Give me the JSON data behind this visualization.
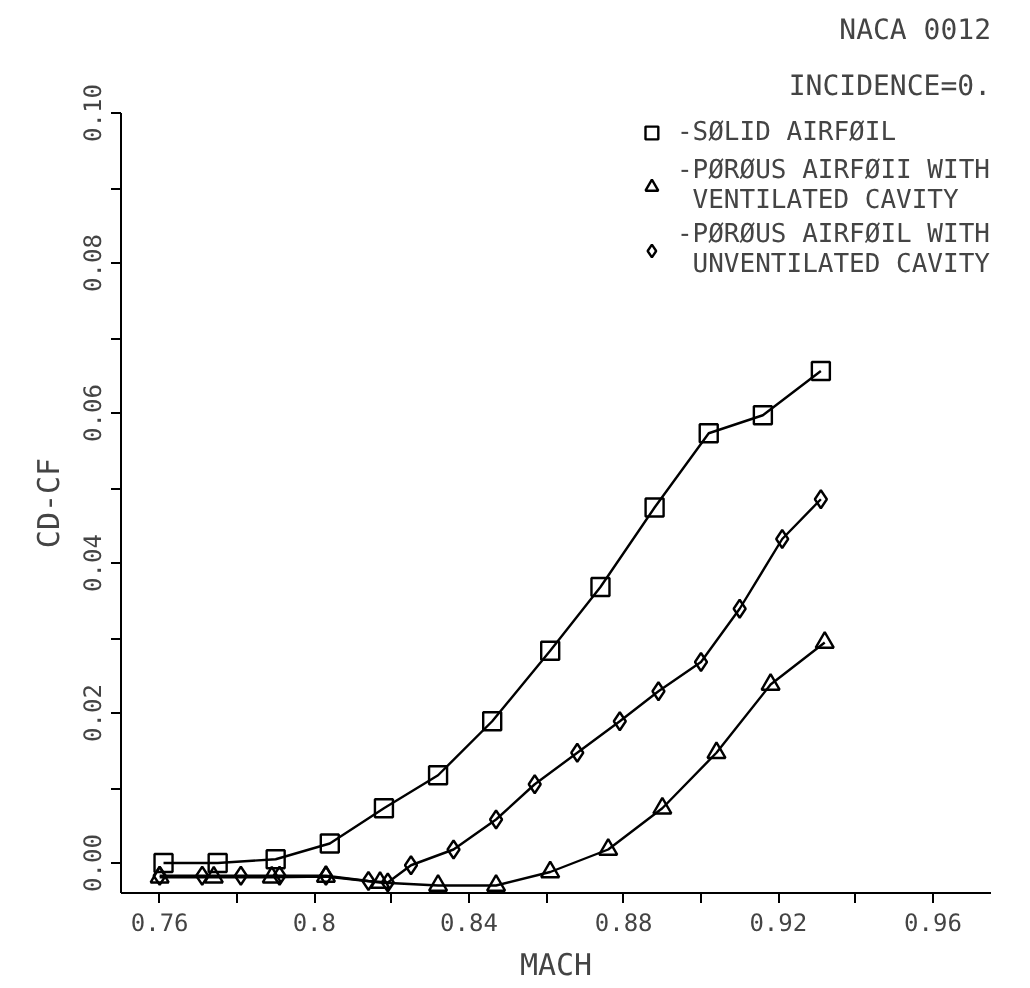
{
  "chart_data": {
    "type": "line",
    "title": "NACA 0012",
    "subtitle": "INCIDENCE=0.",
    "xlabel": "MACH",
    "ylabel": "CD-CF",
    "xlim": [
      0.75,
      0.975
    ],
    "ylim": [
      -0.004,
      0.1
    ],
    "xticks": [
      0.76,
      {
        "value": 0.78,
        "label": null
      },
      0.8,
      {
        "value": 0.82,
        "label": null
      },
      0.84,
      {
        "value": 0.86,
        "label": null
      },
      0.88,
      {
        "value": 0.9,
        "label": null
      },
      0.92,
      {
        "value": 0.94,
        "label": null
      },
      0.96
    ],
    "yticks": [
      {
        "value": 0.0,
        "label": "0.00"
      },
      {
        "value": 0.01,
        "label": null
      },
      0.02,
      {
        "value": 0.03,
        "label": null
      },
      0.04,
      {
        "value": 0.05,
        "label": null
      },
      0.06,
      {
        "value": 0.07,
        "label": null
      },
      {
        "value": 0.08,
        "label": "0.08"
      },
      {
        "value": 0.09,
        "label": null
      },
      {
        "value": 0.1,
        "label": "0.10"
      }
    ],
    "grid": false,
    "legend": "top right",
    "series": [
      {
        "name": "-SØLID AIRFØIL",
        "color": "#000000",
        "marker": "square",
        "x": [
          0.761,
          0.775,
          0.79,
          0.804,
          0.818,
          0.832,
          0.846,
          0.861,
          0.874,
          0.888,
          0.902,
          0.916,
          0.931
        ],
        "values": [
          0.0,
          0.0,
          0.0005,
          0.0026,
          0.0073,
          0.0117,
          0.0189,
          0.0283,
          0.0368,
          0.0474,
          0.0573,
          0.0597,
          0.0656
        ]
      },
      {
        "name": "-PØRØUS AIRFØII WITH\n VENTILATED CAVITY",
        "color": "#000000",
        "marker": "triangle",
        "x": [
          0.76,
          0.774,
          0.789,
          0.803,
          0.817,
          0.832,
          0.847,
          0.861,
          0.876,
          0.89,
          0.904,
          0.918,
          0.932
        ],
        "values": [
          -0.0019,
          -0.0019,
          -0.0019,
          -0.0018,
          -0.0026,
          -0.003,
          -0.003,
          -0.0012,
          0.0018,
          0.0073,
          0.0147,
          0.0238,
          0.0294
        ]
      },
      {
        "name": "-PØRØUS AIRFØIL WITH\n UNVENTILATED CAVITY",
        "color": "#000000",
        "marker": "diamond",
        "x": [
          0.76,
          0.771,
          0.781,
          0.791,
          0.803,
          0.814,
          0.819,
          0.825,
          0.836,
          0.847,
          0.857,
          0.868,
          0.879,
          0.889,
          0.9,
          0.91,
          0.921,
          0.931
        ],
        "values": [
          -0.0017,
          -0.0017,
          -0.0017,
          -0.0017,
          -0.0017,
          -0.0024,
          -0.0026,
          -0.0003,
          0.0018,
          0.0058,
          0.0105,
          0.0147,
          0.0189,
          0.0229,
          0.0268,
          0.0339,
          0.0432,
          0.0485
        ]
      }
    ]
  }
}
